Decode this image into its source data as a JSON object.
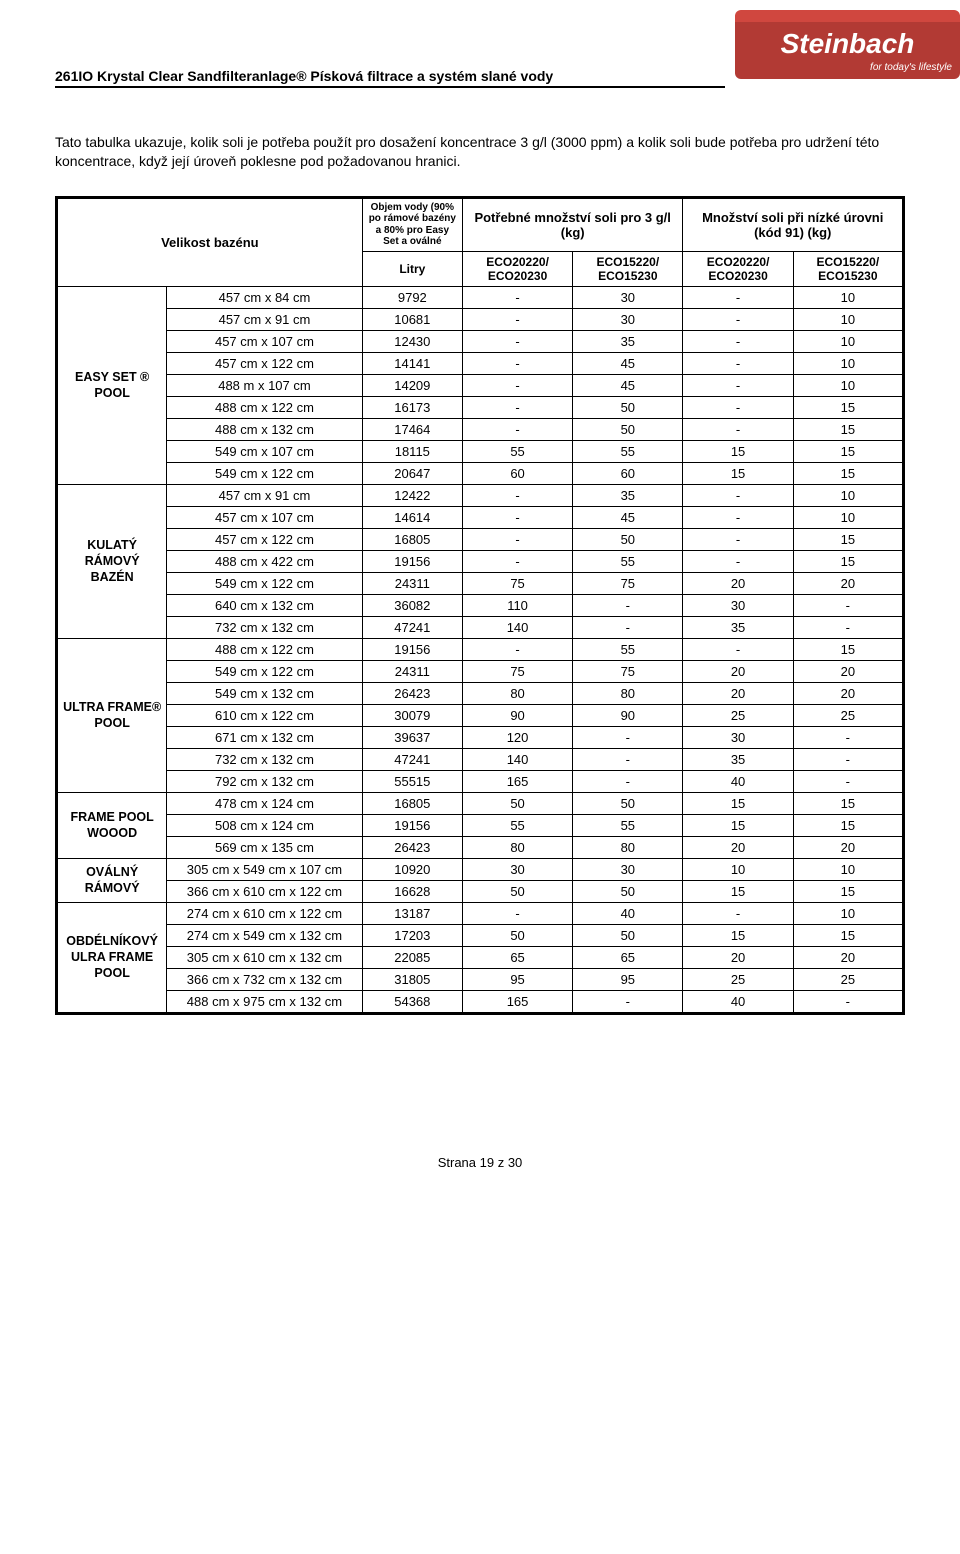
{
  "logo": {
    "brand": "Steinbach",
    "tagline": "for today's lifestyle"
  },
  "docTitle": "261IO Krystal Clear Sandfilteranlage® Písková filtrace a systém slané vody",
  "intro": "Tato tabulka ukazuje, kolik soli je potřeba použít pro dosažení koncentrace 3 g/l (3000 ppm) a kolik soli bude potřeba pro udržení této koncentrace, když její úroveň poklesne pod požadovanou hranici.",
  "headers": {
    "poolSize": "Velikost bazénu",
    "volume": "Objem vody (90% po rámové bazény a 80% pro Easy Set a oválné",
    "litry": "Litry",
    "needed": "Potřebné množství soli pro 3 g/l (kg)",
    "low": "Množství soli při nízké úrovni (kód 91) (kg)",
    "c1": "ECO20220/ ECO20230",
    "c2": "ECO15220/ ECO15230",
    "c3": "ECO20220/ ECO20230",
    "c4": "ECO15220/ ECO15230"
  },
  "categories": [
    {
      "name": "EASY SET ® POOL",
      "rows": [
        {
          "size": "457 cm x 84 cm",
          "litry": "9792",
          "v": [
            "-",
            "30",
            "-",
            "10"
          ]
        },
        {
          "size": "457 cm x 91 cm",
          "litry": "10681",
          "v": [
            "-",
            "30",
            "-",
            "10"
          ]
        },
        {
          "size": "457 cm x 107 cm",
          "litry": "12430",
          "v": [
            "-",
            "35",
            "-",
            "10"
          ]
        },
        {
          "size": "457 cm x 122 cm",
          "litry": "14141",
          "v": [
            "-",
            "45",
            "-",
            "10"
          ]
        },
        {
          "size": "488 m x 107 cm",
          "litry": "14209",
          "v": [
            "-",
            "45",
            "-",
            "10"
          ]
        },
        {
          "size": "488 cm x 122 cm",
          "litry": "16173",
          "v": [
            "-",
            "50",
            "-",
            "15"
          ]
        },
        {
          "size": "488 cm x 132 cm",
          "litry": "17464",
          "v": [
            "-",
            "50",
            "-",
            "15"
          ]
        },
        {
          "size": "549 cm x 107 cm",
          "litry": "18115",
          "v": [
            "55",
            "55",
            "15",
            "15"
          ]
        },
        {
          "size": "549 cm x 122 cm",
          "litry": "20647",
          "v": [
            "60",
            "60",
            "15",
            "15"
          ]
        }
      ]
    },
    {
      "name": "KULATÝ RÁMOVÝ BAZÉN",
      "rows": [
        {
          "size": "457 cm x 91 cm",
          "litry": "12422",
          "v": [
            "-",
            "35",
            "-",
            "10"
          ]
        },
        {
          "size": "457 cm x 107 cm",
          "litry": "14614",
          "v": [
            "-",
            "45",
            "-",
            "10"
          ]
        },
        {
          "size": "457 cm x 122 cm",
          "litry": "16805",
          "v": [
            "-",
            "50",
            "-",
            "15"
          ]
        },
        {
          "size": "488 cm x 422 cm",
          "litry": "19156",
          "v": [
            "-",
            "55",
            "-",
            "15"
          ]
        },
        {
          "size": "549 cm x 122 cm",
          "litry": "24311",
          "v": [
            "75",
            "75",
            "20",
            "20"
          ]
        },
        {
          "size": "640 cm x 132 cm",
          "litry": "36082",
          "v": [
            "110",
            "-",
            "30",
            "-"
          ]
        },
        {
          "size": "732 cm x 132 cm",
          "litry": "47241",
          "v": [
            "140",
            "-",
            "35",
            "-"
          ]
        }
      ]
    },
    {
      "name": "ULTRA FRAME® POOL",
      "rows": [
        {
          "size": "488 cm x 122 cm",
          "litry": "19156",
          "v": [
            "-",
            "55",
            "-",
            "15"
          ]
        },
        {
          "size": "549 cm x 122 cm",
          "litry": "24311",
          "v": [
            "75",
            "75",
            "20",
            "20"
          ]
        },
        {
          "size": "549 cm x 132 cm",
          "litry": "26423",
          "v": [
            "80",
            "80",
            "20",
            "20"
          ]
        },
        {
          "size": "610 cm x 122 cm",
          "litry": "30079",
          "v": [
            "90",
            "90",
            "25",
            "25"
          ]
        },
        {
          "size": "671 cm x 132 cm",
          "litry": "39637",
          "v": [
            "120",
            "-",
            "30",
            "-"
          ]
        },
        {
          "size": "732 cm x 132 cm",
          "litry": "47241",
          "v": [
            "140",
            "-",
            "35",
            "-"
          ]
        },
        {
          "size": "792 cm x 132 cm",
          "litry": "55515",
          "v": [
            "165",
            "-",
            "40",
            "-"
          ]
        }
      ]
    },
    {
      "name": "FRAME POOL WOOOD",
      "rows": [
        {
          "size": "478 cm x 124 cm",
          "litry": "16805",
          "v": [
            "50",
            "50",
            "15",
            "15"
          ]
        },
        {
          "size": "508 cm x 124 cm",
          "litry": "19156",
          "v": [
            "55",
            "55",
            "15",
            "15"
          ]
        },
        {
          "size": "569 cm x 135 cm",
          "litry": "26423",
          "v": [
            "80",
            "80",
            "20",
            "20"
          ]
        }
      ]
    },
    {
      "name": "OVÁLNÝ RÁMOVÝ",
      "rows": [
        {
          "size": "305 cm x 549 cm x 107 cm",
          "litry": "10920",
          "v": [
            "30",
            "30",
            "10",
            "10"
          ]
        },
        {
          "size": "366 cm x 610 cm x 122 cm",
          "litry": "16628",
          "v": [
            "50",
            "50",
            "15",
            "15"
          ]
        }
      ]
    },
    {
      "name": "OBDÉLNÍKOVÝ ULRA FRAME POOL",
      "rows": [
        {
          "size": "274 cm x 610 cm x 122 cm",
          "litry": "13187",
          "v": [
            "-",
            "40",
            "-",
            "10"
          ]
        },
        {
          "size": "274 cm x 549 cm x 132 cm",
          "litry": "17203",
          "v": [
            "50",
            "50",
            "15",
            "15"
          ]
        },
        {
          "size": "305 cm x 610 cm x 132 cm",
          "litry": "22085",
          "v": [
            "65",
            "65",
            "20",
            "20"
          ]
        },
        {
          "size": "366 cm x 732 cm x 132 cm",
          "litry": "31805",
          "v": [
            "95",
            "95",
            "25",
            "25"
          ]
        },
        {
          "size": "488 cm x 975 cm x 132 cm",
          "litry": "54368",
          "v": [
            "165",
            "-",
            "40",
            "-"
          ]
        }
      ]
    }
  ],
  "footer": "Strana 19 z 30"
}
